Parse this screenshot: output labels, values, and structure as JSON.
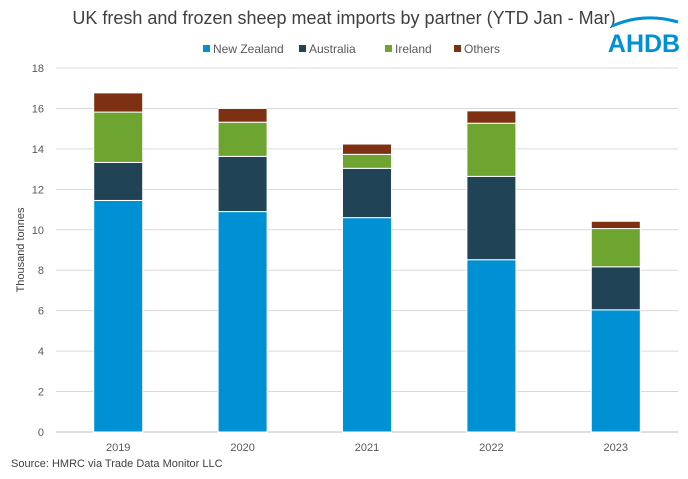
{
  "logo_text": "AHDB",
  "source": "Source: HMRC via Trade Data Monitor LLC",
  "chart_data": {
    "type": "bar",
    "stacked": true,
    "title": "UK fresh and frozen sheep meat imports by partner (YTD Jan - Mar)",
    "xlabel": "",
    "ylabel": "Thousand tonnes",
    "ylim": [
      0,
      18
    ],
    "yticks": [
      0,
      2,
      4,
      6,
      8,
      10,
      12,
      14,
      16,
      18
    ],
    "grid": true,
    "legend": "top",
    "categories": [
      "2019",
      "2020",
      "2021",
      "2022",
      "2023"
    ],
    "series": [
      {
        "name": "New Zealand",
        "color": "#0090D4",
        "values": [
          11.45,
          10.9,
          10.6,
          8.52,
          6.04
        ]
      },
      {
        "name": "Australia",
        "color": "#204455",
        "values": [
          1.88,
          2.73,
          2.44,
          4.12,
          2.13
        ]
      },
      {
        "name": "Ireland",
        "color": "#6EA530",
        "values": [
          2.49,
          1.69,
          0.69,
          2.63,
          1.89
        ]
      },
      {
        "name": "Others",
        "color": "#7D3012",
        "values": [
          0.95,
          0.68,
          0.51,
          0.61,
          0.36
        ]
      }
    ]
  }
}
